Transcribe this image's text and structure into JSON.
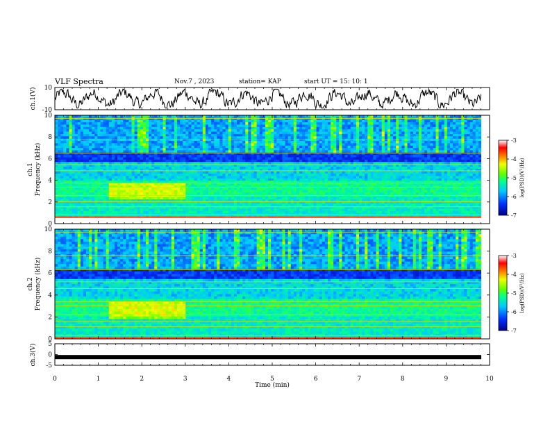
{
  "header": {
    "title": "VLF Spectra",
    "date": "Nov.7 , 2023",
    "station": "station= KAP",
    "start": "start UT = 15: 10: 1"
  },
  "chart_data": [
    {
      "type": "line",
      "panel": "ch1-waveform",
      "ylabel": "ch.1(V)",
      "yticks": [
        "10",
        "-10"
      ],
      "ylim": [
        -10,
        10
      ],
      "xlim": [
        0,
        10
      ],
      "description_values": "noisy waveform oscillating roughly between -8 V and +8 V from 0 to ~9.8 min"
    },
    {
      "type": "heatmap",
      "panel": "ch1-spectrogram",
      "ylabel": "ch.1\nFrequency (kHz)",
      "ylabel_line1": "ch.1",
      "ylabel_line2": "Frequency (kHz)",
      "yticks": [
        "10",
        "8",
        "6",
        "4",
        "2",
        "0"
      ],
      "ylim": [
        0,
        10
      ],
      "xlim": [
        0,
        10
      ],
      "colorbar": {
        "label": "log(PSD)(V²/Hz)",
        "ticks": [
          "-3",
          "-4",
          "-5",
          "-6",
          "-7"
        ],
        "range": [
          -7,
          -3
        ]
      }
    },
    {
      "type": "heatmap",
      "panel": "ch2-spectrogram",
      "ylabel_line1": "ch.2",
      "ylabel_line2": "Frequency (kHz)",
      "yticks": [
        "10",
        "8",
        "6",
        "4",
        "2",
        "0"
      ],
      "ylim": [
        0,
        10
      ],
      "xlim": [
        0,
        10
      ],
      "colorbar": {
        "label": "log(PSD)(V²/Hz)",
        "ticks": [
          "-3",
          "-4",
          "-5",
          "-6",
          "-7"
        ],
        "range": [
          -7,
          -3
        ]
      }
    },
    {
      "type": "line",
      "panel": "ch3-waveform",
      "ylabel": "ch.3(V)",
      "yticks": [
        "5",
        "0",
        "-5"
      ],
      "ylim": [
        -5,
        5
      ],
      "value": -1.2,
      "xlim": [
        0,
        10
      ],
      "xlabel": "Time (min)",
      "xticks": [
        "0",
        "1",
        "2",
        "3",
        "4",
        "5",
        "6",
        "7",
        "8",
        "9",
        "10"
      ]
    }
  ],
  "colors": {
    "colormap": [
      "#0000a0",
      "#0040ff",
      "#00c0ff",
      "#00ff80",
      "#80ff00",
      "#ffff00",
      "#ff8000",
      "#ff0000",
      "#ffffff"
    ]
  }
}
